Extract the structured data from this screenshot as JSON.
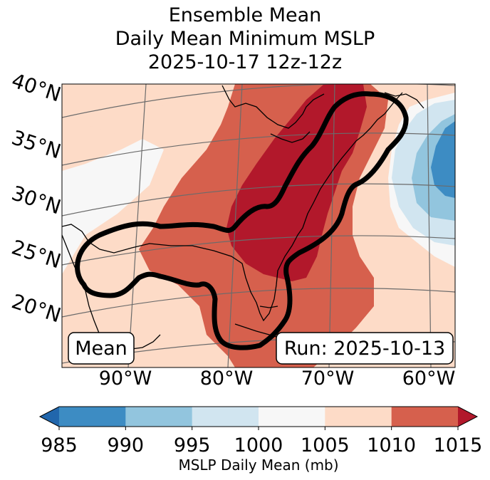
{
  "title": {
    "line1": "Ensemble Mean",
    "line2": "Daily Mean Minimum MSLP",
    "line3": "2025-10-17 12z-12z"
  },
  "map": {
    "latitude_labels": [
      "40°N",
      "35°N",
      "30°N",
      "25°N",
      "20°N"
    ],
    "longitude_labels": [
      "90°W",
      "80°W",
      "70°W",
      "60°W"
    ],
    "mean_label": "Mean",
    "run_label": "Run: 2025-10-13"
  },
  "colorbar": {
    "label": "MSLP Daily Mean (mb)",
    "ticks": [
      "985",
      "990",
      "995",
      "1000",
      "1005",
      "1010",
      "1015"
    ],
    "colors": [
      "#2166ac",
      "#3d8cc3",
      "#92c5de",
      "#d1e5f0",
      "#f7f7f7",
      "#fddbc7",
      "#d6604d",
      "#b2182b"
    ]
  }
}
